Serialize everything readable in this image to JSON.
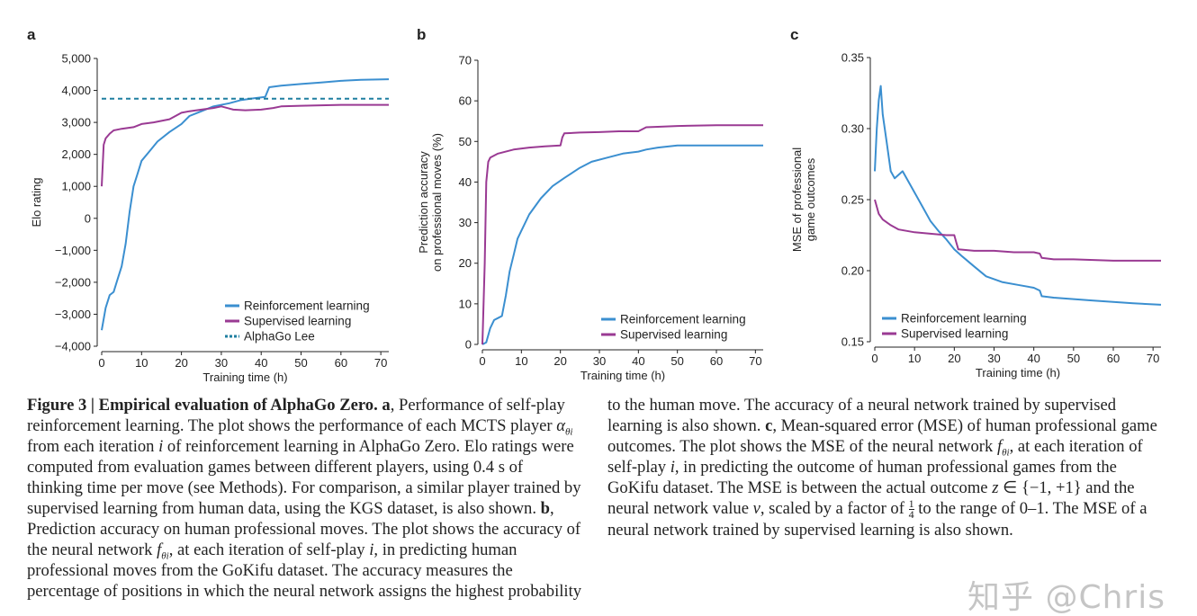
{
  "colors": {
    "rl": "#3b8fd0",
    "sl": "#9a3a93",
    "lee": "#1f7fa0"
  },
  "chart_data": [
    {
      "panel": "a",
      "type": "line",
      "xlabel": "Training time (h)",
      "ylabel": "Elo rating",
      "xlim": [
        0,
        72
      ],
      "ylim": [
        -4000,
        5000
      ],
      "xticks": [
        "0",
        "10",
        "20",
        "30",
        "40",
        "50",
        "60",
        "70"
      ],
      "yticks": [
        "-4,000",
        "-3,000",
        "-2,000",
        "-1,000",
        "0",
        "1,000",
        "2,000",
        "3,000",
        "4,000",
        "5,000"
      ],
      "legend_position": "bottom-right",
      "series": [
        {
          "name": "Reinforcement learning",
          "color_key": "rl",
          "style": "solid",
          "x": [
            0,
            1,
            2,
            3,
            4,
            5,
            6,
            7,
            8,
            9,
            10,
            12,
            14,
            17,
            20,
            22,
            25,
            28,
            32,
            35,
            38,
            41,
            42,
            45,
            50,
            55,
            60,
            65,
            72
          ],
          "y": [
            -3500,
            -2800,
            -2400,
            -2300,
            -1900,
            -1500,
            -800,
            200,
            1000,
            1400,
            1800,
            2100,
            2400,
            2700,
            2950,
            3200,
            3350,
            3500,
            3600,
            3700,
            3750,
            3800,
            4100,
            4150,
            4200,
            4250,
            4300,
            4330,
            4350
          ]
        },
        {
          "name": "Supervised learning",
          "color_key": "sl",
          "style": "solid",
          "x": [
            0,
            0.5,
            1,
            2,
            3,
            5,
            8,
            10,
            13,
            17,
            20,
            22,
            25,
            28,
            30,
            33,
            36,
            40,
            43,
            45,
            50,
            60,
            72
          ],
          "y": [
            1000,
            2300,
            2500,
            2650,
            2750,
            2800,
            2850,
            2950,
            3000,
            3100,
            3300,
            3350,
            3400,
            3450,
            3500,
            3400,
            3380,
            3400,
            3450,
            3500,
            3520,
            3550,
            3550
          ]
        },
        {
          "name": "AlphaGo Lee",
          "color_key": "lee",
          "style": "dashed",
          "x": [
            0,
            72
          ],
          "y": [
            3739,
            3739
          ]
        }
      ]
    },
    {
      "panel": "b",
      "type": "line",
      "xlabel": "Training time (h)",
      "ylabel": "Prediction accuracy on professional moves (%)",
      "ylabel_lines": [
        "Prediction accuracy",
        "on professional moves (%)"
      ],
      "xlim": [
        0,
        72
      ],
      "ylim": [
        0,
        70
      ],
      "xticks": [
        "0",
        "10",
        "20",
        "30",
        "40",
        "50",
        "60",
        "70"
      ],
      "yticks": [
        "0",
        "10",
        "20",
        "30",
        "40",
        "50",
        "60",
        "70"
      ],
      "legend_position": "bottom-right",
      "series": [
        {
          "name": "Reinforcement learning",
          "color_key": "rl",
          "style": "solid",
          "x": [
            0,
            1,
            2,
            3,
            4,
            5,
            6,
            7,
            8,
            9,
            10,
            12,
            15,
            18,
            21,
            25,
            28,
            32,
            36,
            40,
            42,
            45,
            50,
            60,
            72
          ],
          "y": [
            0,
            0.5,
            4,
            6,
            6.5,
            7,
            12,
            18,
            22,
            26,
            28,
            32,
            36,
            39,
            41,
            43.5,
            45,
            46,
            47,
            47.5,
            48,
            48.5,
            49,
            49,
            49
          ]
        },
        {
          "name": "Supervised learning",
          "color_key": "sl",
          "style": "solid",
          "x": [
            0,
            0.6,
            1,
            1.5,
            2,
            4,
            8,
            12,
            16,
            20,
            20.5,
            21,
            25,
            30,
            35,
            40,
            42,
            45,
            50,
            60,
            72
          ],
          "y": [
            0,
            20,
            40,
            45,
            46,
            47,
            48,
            48.5,
            48.8,
            49,
            51,
            52,
            52.2,
            52.3,
            52.5,
            52.5,
            53.5,
            53.6,
            53.8,
            54,
            54
          ]
        }
      ]
    },
    {
      "panel": "c",
      "type": "line",
      "xlabel": "Training time (h)",
      "ylabel": "MSE of professional game outcomes",
      "ylabel_lines": [
        "MSE of professional",
        "game outcomes"
      ],
      "xlim": [
        0,
        72
      ],
      "ylim": [
        0.15,
        0.35
      ],
      "xticks": [
        "0",
        "10",
        "20",
        "30",
        "40",
        "50",
        "60",
        "70"
      ],
      "yticks": [
        "0.15",
        "0.20",
        "0.25",
        "0.30",
        "0.35"
      ],
      "legend_position": "bottom-left",
      "series": [
        {
          "name": "Reinforcement learning",
          "color_key": "rl",
          "style": "solid",
          "x": [
            0,
            0.5,
            1,
            1.5,
            2,
            3,
            4,
            5,
            7,
            9,
            10,
            12,
            14,
            16,
            18,
            20,
            22,
            25,
            28,
            32,
            36,
            40,
            41.5,
            42,
            45,
            50,
            55,
            60,
            65,
            72
          ],
          "y": [
            0.27,
            0.3,
            0.32,
            0.33,
            0.31,
            0.29,
            0.27,
            0.265,
            0.27,
            0.26,
            0.255,
            0.245,
            0.235,
            0.228,
            0.222,
            0.215,
            0.21,
            0.203,
            0.196,
            0.192,
            0.19,
            0.188,
            0.186,
            0.182,
            0.181,
            0.18,
            0.179,
            0.178,
            0.177,
            0.176
          ]
        },
        {
          "name": "Supervised learning",
          "color_key": "sl",
          "style": "solid",
          "x": [
            0,
            1,
            2,
            4,
            6,
            10,
            14,
            18,
            20,
            20.5,
            21,
            25,
            30,
            35,
            40,
            41.5,
            42,
            45,
            50,
            60,
            72
          ],
          "y": [
            0.25,
            0.24,
            0.236,
            0.232,
            0.229,
            0.227,
            0.226,
            0.225,
            0.225,
            0.22,
            0.215,
            0.214,
            0.214,
            0.213,
            0.213,
            0.212,
            0.209,
            0.208,
            0.208,
            0.207,
            0.207
          ]
        }
      ]
    }
  ],
  "caption": {
    "fig_label": "Figure 3 | Empirical evaluation of AlphaGo Zero.",
    "a_label": "a",
    "t1": ", Performance of self-play reinforcement learning. The plot shows the performance of each MCTS player ",
    "alpha": "α",
    "theta_i": "θi",
    "t2": " from each iteration ",
    "i": "i",
    "t3": " of reinforcement learning in AlphaGo Zero. Elo ratings were computed from evaluation games between different players, using 0.4 s of thinking time per move (see Methods). For comparison, a similar player trained by supervised learning from human data, using the KGS dataset, is also shown. ",
    "b_label": "b",
    "t4": ", Prediction accuracy on human professional moves. The plot shows the accuracy of the neural network ",
    "f": "f",
    "t5": ", at each iteration of self-play ",
    "t6": ", in predicting human professional moves from the GoKifu dataset. The accuracy measures the percentage of positions in which the neural network assigns the highest probability to the human move. The accuracy of a neural network trained by supervised learning is also shown. ",
    "c_label": "c",
    "t7": ", Mean-squared error (MSE) of human professional game outcomes. The plot shows the MSE of the neural network ",
    "t8": ", in predicting the outcome of human professional games from the GoKifu dataset. The MSE is between the actual outcome ",
    "z": "z",
    "t9": " ∈ {−1, +1} and the neural network value ",
    "v": "v",
    "t10": ", scaled by a factor of ",
    "frac_num": "1",
    "frac_den": "4",
    "t11": " to the range of 0–1. The MSE of a neural network trained by supervised learning is also shown."
  },
  "watermark": "知乎 @Chris"
}
